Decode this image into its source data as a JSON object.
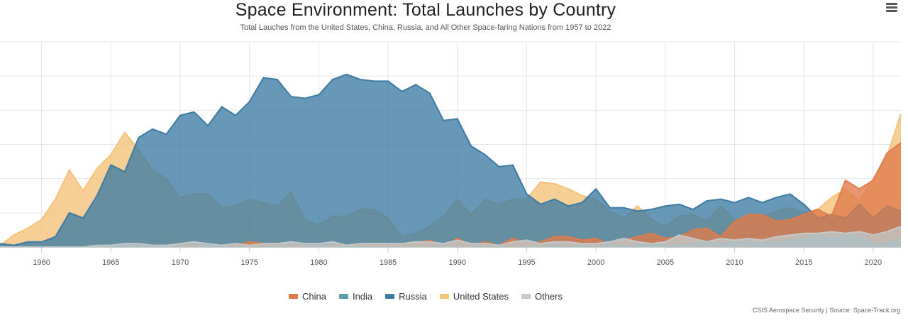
{
  "header": {
    "title": "Space Environment: Total Launches by Country",
    "subtitle": "Total Lauches from the United States, China, Russia, and All Other Space-faring Nations from 1957 to 2022"
  },
  "menu": {
    "icon": "hamburger-menu-icon"
  },
  "credit": "CSIS Aerospace Security | Source: Space-Track.org",
  "colors": {
    "China": "#e07b4a",
    "India": "#5a9fa6",
    "Russia": "#3c7ba3",
    "United States": "#f4c27a",
    "Others": "#c4c9cb"
  },
  "legend": [
    {
      "label": "China"
    },
    {
      "label": "India"
    },
    {
      "label": "Russia"
    },
    {
      "label": "United States"
    },
    {
      "label": "Others"
    }
  ],
  "chart_data": {
    "type": "area",
    "title": "Space Environment: Total Launches by Country",
    "subtitle": "Total Lauches from the United States, China, Russia, and All Other Space-faring Nations from 1957 to 2022",
    "xlabel": "",
    "ylabel": "",
    "xlim": [
      1957,
      2022
    ],
    "ylim": [
      0,
      120
    ],
    "x_ticks": [
      1960,
      1965,
      1970,
      1975,
      1980,
      1985,
      1990,
      1995,
      2000,
      2005,
      2010,
      2015,
      2020
    ],
    "grid": true,
    "legend_position": "bottom",
    "x": [
      1957,
      1958,
      1959,
      1960,
      1961,
      1962,
      1963,
      1964,
      1965,
      1966,
      1967,
      1968,
      1969,
      1970,
      1971,
      1972,
      1973,
      1974,
      1975,
      1976,
      1977,
      1978,
      1979,
      1980,
      1981,
      1982,
      1983,
      1984,
      1985,
      1986,
      1987,
      1988,
      1989,
      1990,
      1991,
      1992,
      1993,
      1994,
      1995,
      1996,
      1997,
      1998,
      1999,
      2000,
      2001,
      2002,
      2003,
      2004,
      2005,
      2006,
      2007,
      2008,
      2009,
      2010,
      2011,
      2012,
      2013,
      2014,
      2015,
      2016,
      2017,
      2018,
      2019,
      2020,
      2021,
      2022
    ],
    "series": [
      {
        "name": "United States",
        "values": [
          1,
          7,
          11,
          16,
          28,
          45,
          33,
          46,
          54,
          67,
          57,
          45,
          40,
          29,
          31,
          31,
          23,
          24,
          28,
          26,
          24,
          32,
          16,
          13,
          18,
          18,
          22,
          22,
          17,
          6,
          8,
          12,
          18,
          28,
          19,
          28,
          25,
          28,
          28,
          38,
          37,
          34,
          30,
          28,
          21,
          17,
          24,
          16,
          12,
          18,
          19,
          15,
          24,
          16,
          18,
          18,
          21,
          23,
          20,
          22,
          29,
          34,
          27,
          40,
          53,
          78
        ]
      },
      {
        "name": "Russia",
        "values": [
          2,
          1,
          3,
          3,
          6,
          20,
          17,
          30,
          48,
          44,
          64,
          69,
          66,
          77,
          79,
          71,
          82,
          77,
          85,
          99,
          98,
          88,
          87,
          89,
          98,
          101,
          98,
          97,
          97,
          91,
          95,
          90,
          74,
          75,
          59,
          54,
          47,
          48,
          31,
          25,
          28,
          24,
          26,
          34,
          23,
          23,
          21,
          22,
          24,
          25,
          22,
          27,
          28,
          26,
          29,
          26,
          29,
          31,
          25,
          17,
          19,
          17,
          25,
          17,
          24,
          21
        ]
      },
      {
        "name": "China",
        "values": [
          0,
          0,
          0,
          0,
          0,
          0,
          0,
          0,
          0,
          0,
          0,
          0,
          0,
          1,
          1,
          0,
          0,
          1,
          3,
          2,
          1,
          1,
          1,
          0,
          1,
          1,
          1,
          2,
          1,
          2,
          2,
          4,
          0,
          5,
          1,
          3,
          1,
          5,
          2,
          3,
          6,
          6,
          4,
          5,
          1,
          4,
          6,
          8,
          5,
          6,
          10,
          11,
          6,
          15,
          19,
          19,
          15,
          16,
          19,
          22,
          18,
          39,
          34,
          39,
          55,
          61
        ]
      },
      {
        "name": "India",
        "values": [
          0,
          0,
          0,
          0,
          0,
          0,
          0,
          0,
          0,
          0,
          0,
          0,
          0,
          0,
          0,
          0,
          0,
          0,
          0,
          0,
          0,
          0,
          0,
          0,
          0,
          0,
          0,
          0,
          0,
          0,
          0,
          0,
          0,
          0,
          0,
          0,
          0,
          0,
          0,
          0,
          1,
          0,
          1,
          0,
          1,
          1,
          1,
          2,
          1,
          1,
          2,
          3,
          2,
          3,
          3,
          2,
          3,
          4,
          5,
          7,
          5,
          7,
          6,
          2,
          2,
          5
        ]
      },
      {
        "name": "Others",
        "values": [
          0,
          0,
          0,
          0,
          0,
          0,
          0,
          1,
          1,
          2,
          2,
          1,
          1,
          2,
          3,
          2,
          1,
          2,
          1,
          2,
          2,
          3,
          2,
          2,
          3,
          1,
          2,
          2,
          2,
          2,
          3,
          3,
          2,
          4,
          2,
          2,
          1,
          3,
          4,
          2,
          3,
          3,
          2,
          2,
          3,
          5,
          3,
          2,
          3,
          7,
          5,
          3,
          5,
          4,
          5,
          4,
          6,
          7,
          8,
          8,
          9,
          8,
          9,
          7,
          9,
          12
        ]
      }
    ]
  }
}
